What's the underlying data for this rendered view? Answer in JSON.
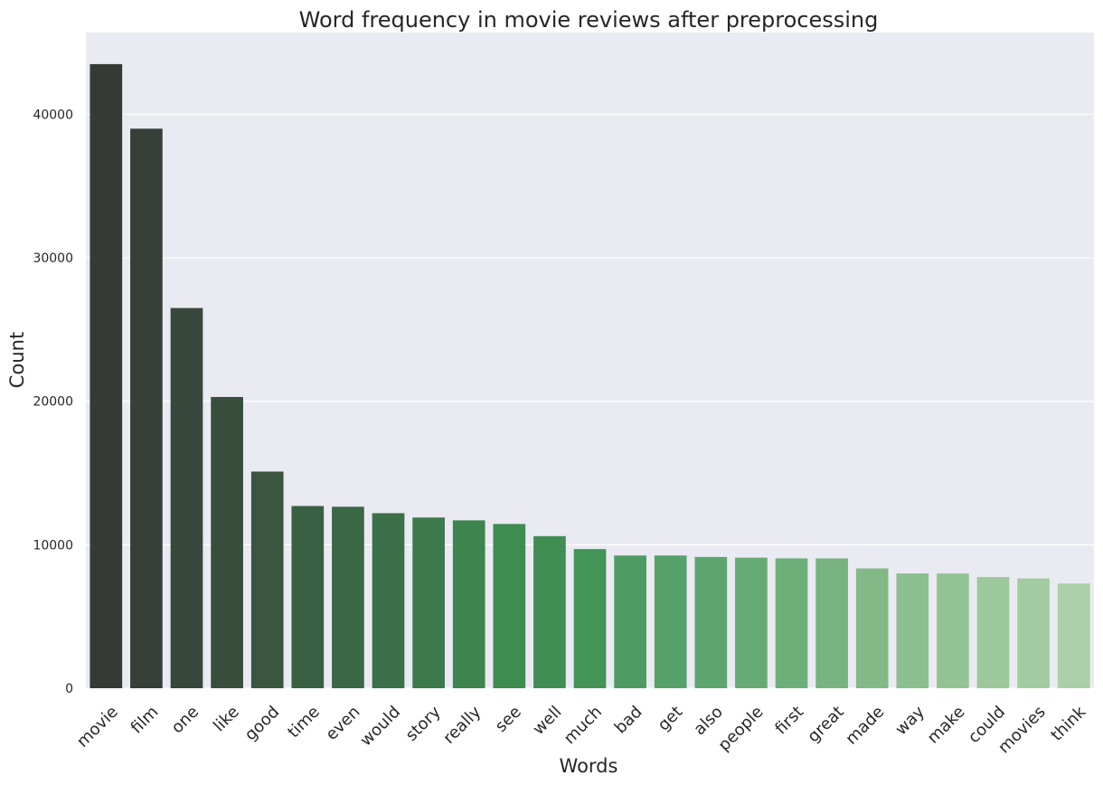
{
  "chart_data": {
    "type": "bar",
    "title": "Word frequency in movie reviews after preprocessing",
    "xlabel": "Words",
    "ylabel": "Count",
    "ylim": [
      0,
      45700
    ],
    "yticks": [
      0,
      10000,
      20000,
      30000,
      40000
    ],
    "grid": true,
    "background": "#eaeaf2",
    "categories": [
      "movie",
      "film",
      "one",
      "like",
      "good",
      "time",
      "even",
      "would",
      "story",
      "really",
      "see",
      "well",
      "much",
      "bad",
      "get",
      "also",
      "people",
      "first",
      "great",
      "made",
      "way",
      "make",
      "could",
      "movies",
      "think"
    ],
    "values": [
      43500,
      39000,
      26500,
      20300,
      15100,
      12700,
      12650,
      12200,
      11900,
      11700,
      11450,
      10600,
      9700,
      9250,
      9250,
      9150,
      9100,
      9050,
      9050,
      8350,
      8000,
      8000,
      7750,
      7650,
      7300
    ],
    "colors": [
      "#353a35",
      "#363f38",
      "#37473b",
      "#384e3d",
      "#3a5540",
      "#3a6043",
      "#3b6745",
      "#3c7048",
      "#3c7a4b",
      "#3d844e",
      "#3f8c51",
      "#418e54",
      "#449458",
      "#4e9c63",
      "#56a16a",
      "#5da56f",
      "#66ab76",
      "#6eaf79",
      "#78b47f",
      "#82b986",
      "#8cbf8f",
      "#93c394",
      "#9cc89b",
      "#a2cba1",
      "#abcfa9"
    ]
  }
}
